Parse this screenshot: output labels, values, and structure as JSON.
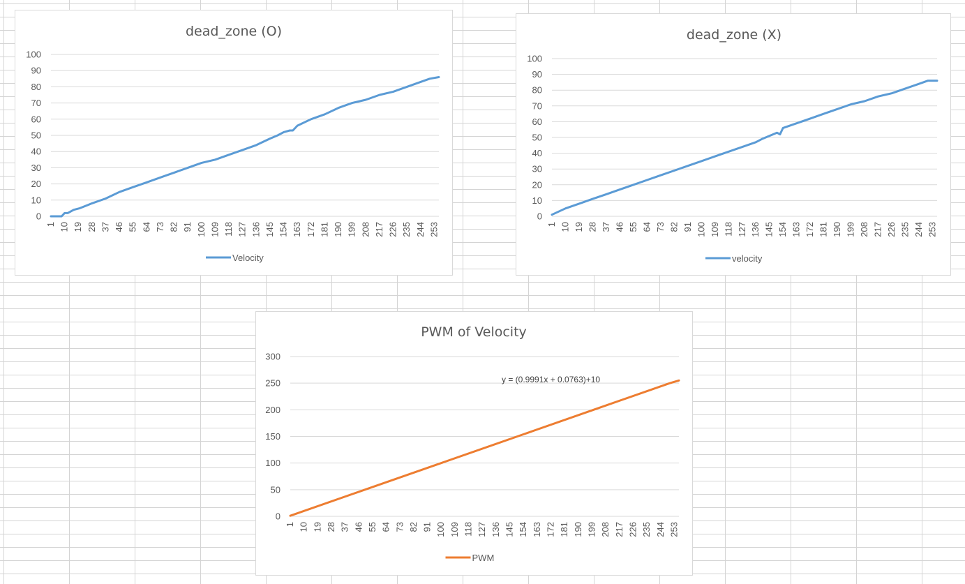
{
  "chart_data": [
    {
      "type": "line",
      "title": "dead_zone (O)",
      "xlabel": "",
      "ylabel": "",
      "ylim": [
        0,
        100
      ],
      "yticks": [
        0,
        10,
        20,
        30,
        40,
        50,
        60,
        70,
        80,
        90,
        100
      ],
      "x_range": [
        1,
        256
      ],
      "xticks": [
        1,
        10,
        19,
        28,
        37,
        46,
        55,
        64,
        73,
        82,
        91,
        100,
        109,
        118,
        127,
        136,
        145,
        154,
        163,
        172,
        181,
        190,
        199,
        208,
        217,
        226,
        235,
        244,
        253
      ],
      "grid": "horizontal",
      "legend_position": "bottom",
      "color": "#5B9BD5",
      "series": [
        {
          "name": "Velocity",
          "x": [
            1,
            8,
            10,
            12,
            16,
            20,
            28,
            37,
            46,
            55,
            64,
            73,
            82,
            91,
            100,
            109,
            118,
            127,
            136,
            145,
            150,
            154,
            158,
            160,
            163,
            172,
            181,
            190,
            199,
            208,
            217,
            226,
            235,
            244,
            250,
            256
          ],
          "y": [
            0,
            0,
            2,
            2,
            4,
            5,
            8,
            11,
            15,
            18,
            21,
            24,
            27,
            30,
            33,
            35,
            38,
            41,
            44,
            48,
            50,
            52,
            53,
            53,
            56,
            60,
            63,
            67,
            70,
            72,
            75,
            77,
            80,
            83,
            85,
            86
          ]
        }
      ]
    },
    {
      "type": "line",
      "title": "dead_zone (X)",
      "xlabel": "",
      "ylabel": "",
      "ylim": [
        0,
        100
      ],
      "yticks": [
        0,
        10,
        20,
        30,
        40,
        50,
        60,
        70,
        80,
        90,
        100
      ],
      "x_range": [
        1,
        256
      ],
      "xticks": [
        1,
        10,
        19,
        28,
        37,
        46,
        55,
        64,
        73,
        82,
        91,
        100,
        109,
        118,
        127,
        136,
        145,
        154,
        163,
        172,
        181,
        190,
        199,
        208,
        217,
        226,
        235,
        244,
        253
      ],
      "grid": "horizontal",
      "legend_position": "bottom",
      "color": "#5B9BD5",
      "series": [
        {
          "name": "velocity",
          "x": [
            1,
            10,
            19,
            28,
            37,
            46,
            55,
            64,
            73,
            82,
            91,
            100,
            109,
            118,
            127,
            136,
            140,
            145,
            150,
            152,
            154,
            163,
            172,
            181,
            190,
            199,
            208,
            217,
            226,
            235,
            244,
            250,
            256
          ],
          "y": [
            1,
            5,
            8,
            11,
            14,
            17,
            20,
            23,
            26,
            29,
            32,
            35,
            38,
            41,
            44,
            47,
            49,
            51,
            53,
            52,
            56,
            59,
            62,
            65,
            68,
            71,
            73,
            76,
            78,
            81,
            84,
            86,
            86
          ]
        }
      ]
    },
    {
      "type": "line",
      "title": "PWM of Velocity",
      "xlabel": "",
      "ylabel": "",
      "ylim": [
        0,
        300
      ],
      "yticks": [
        0,
        50,
        100,
        150,
        200,
        250,
        300
      ],
      "x_range": [
        1,
        256
      ],
      "xticks": [
        1,
        10,
        19,
        28,
        37,
        46,
        55,
        64,
        73,
        82,
        91,
        100,
        109,
        118,
        127,
        136,
        145,
        154,
        163,
        172,
        181,
        190,
        199,
        208,
        217,
        226,
        235,
        244,
        253
      ],
      "grid": "horizontal",
      "legend_position": "bottom",
      "color": "#ED7D31",
      "annotation": "y = (0.9991x + 0.0763)+10",
      "series": [
        {
          "name": "PWM",
          "x": [
            1,
            50,
            100,
            150,
            200,
            250,
            256
          ],
          "y": [
            1,
            50,
            100,
            150,
            200,
            250,
            255
          ]
        }
      ]
    }
  ]
}
